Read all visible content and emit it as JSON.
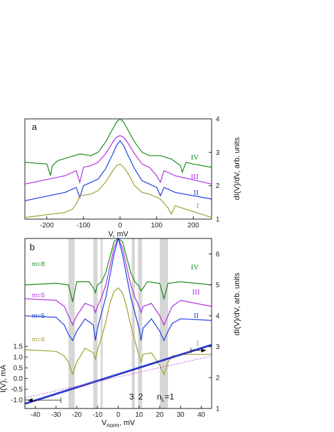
{
  "chart_data": [
    {
      "type": "line",
      "panel_label": "a",
      "xlabel": "V, mV",
      "ylabel": "dI(V)/dV, arb. units",
      "xlim": [
        -260,
        250
      ],
      "ylim": [
        1,
        4
      ],
      "xticks": [
        "-200",
        "-100",
        "0",
        "100",
        "200"
      ],
      "yticks": [
        "1",
        "2",
        "3",
        "4"
      ],
      "grid": false,
      "series": [
        {
          "name": "IV",
          "color": "#1a8a1a",
          "x": [
            -260,
            -200,
            -190,
            -185,
            -170,
            -140,
            -110,
            -80,
            -60,
            -40,
            -20,
            -10,
            0,
            10,
            20,
            40,
            60,
            80,
            110,
            140,
            165,
            170,
            180,
            200,
            250
          ],
          "y": [
            2.7,
            2.65,
            2.3,
            2.6,
            2.75,
            2.85,
            2.95,
            2.9,
            3.0,
            3.3,
            3.7,
            3.9,
            4.0,
            3.9,
            3.7,
            3.3,
            3.0,
            2.9,
            2.9,
            2.8,
            2.6,
            2.4,
            2.7,
            2.65,
            2.55
          ]
        },
        {
          "name": "III",
          "color": "#b030e0",
          "x": [
            -260,
            -150,
            -120,
            -110,
            -100,
            -80,
            -60,
            -40,
            -20,
            -10,
            0,
            10,
            20,
            40,
            60,
            80,
            100,
            110,
            120,
            150,
            250
          ],
          "y": [
            2.05,
            2.3,
            2.45,
            2.1,
            2.55,
            2.6,
            2.7,
            2.95,
            3.3,
            3.45,
            3.5,
            3.45,
            3.3,
            2.95,
            2.65,
            2.55,
            2.3,
            2.1,
            2.45,
            2.3,
            2.05
          ]
        },
        {
          "name": "II",
          "color": "#2040e0",
          "x": [
            -260,
            -150,
            -120,
            -110,
            -100,
            -80,
            -60,
            -40,
            -20,
            -10,
            0,
            10,
            20,
            40,
            60,
            80,
            100,
            110,
            120,
            150,
            250
          ],
          "y": [
            1.55,
            1.8,
            1.95,
            1.65,
            2.0,
            2.1,
            2.2,
            2.5,
            2.95,
            3.2,
            3.35,
            3.2,
            2.95,
            2.5,
            2.15,
            2.05,
            1.95,
            1.7,
            1.95,
            1.8,
            1.6
          ]
        },
        {
          "name": "I",
          "color": "#a0a030",
          "x": [
            -260,
            -150,
            -130,
            -120,
            -110,
            -80,
            -60,
            -40,
            -20,
            -10,
            0,
            10,
            20,
            40,
            60,
            80,
            110,
            130,
            140,
            150,
            250
          ],
          "y": [
            1.05,
            1.2,
            1.3,
            1.45,
            1.7,
            1.75,
            1.85,
            2.1,
            2.45,
            2.6,
            2.65,
            2.55,
            2.4,
            2.0,
            1.8,
            1.75,
            1.6,
            1.35,
            1.15,
            1.4,
            1.05
          ]
        }
      ],
      "curve_labels": [
        "IV",
        "III",
        "II",
        "I"
      ]
    },
    {
      "type": "line",
      "panel_label": "b",
      "xlabel_main": "V",
      "xlabel_sub": "norm",
      "xlabel_tail": ", mV",
      "ylabel_right": "dI(V)/dV, arb. units",
      "ylabel_left": "I(V), mA",
      "xlim": [
        -45,
        45
      ],
      "ylim_right": [
        1,
        6.5
      ],
      "ylim_left": [
        -1.4,
        1.7
      ],
      "xticks": [
        "-40",
        "-30",
        "-20",
        "-10",
        "0",
        "10",
        "20",
        "30",
        "40"
      ],
      "yticks_right": [
        "1",
        "2",
        "3",
        "4",
        "5",
        "6"
      ],
      "yticks_left": [
        "-1.0",
        "-0.5",
        "0.0",
        "0.5",
        "1.0",
        "1.5"
      ],
      "grid": false,
      "shaded_bands_mV": [
        [
          -24,
          -21
        ],
        [
          -12,
          -10
        ],
        [
          -8.5,
          -7.5
        ],
        [
          6.5,
          8
        ],
        [
          9.5,
          11.5
        ],
        [
          20,
          24
        ]
      ],
      "annotations": [
        "3",
        "2",
        "n",
        "L",
        "=1"
      ],
      "series": [
        {
          "name": "IV",
          "label": "m=8",
          "color": "#1a8a1a",
          "x": [
            -45,
            -30,
            -24,
            -22,
            -20,
            -14,
            -12,
            -11,
            -10,
            -8,
            -6,
            -4,
            -2,
            0,
            2,
            4,
            6,
            8,
            10,
            11,
            12,
            14,
            20,
            22,
            24,
            30,
            45
          ],
          "y": [
            5.0,
            5.05,
            5.0,
            4.45,
            5.1,
            5.1,
            4.9,
            4.75,
            5.0,
            5.1,
            5.4,
            5.9,
            6.4,
            6.6,
            6.4,
            5.9,
            5.4,
            5.1,
            4.95,
            4.8,
            4.9,
            5.1,
            5.05,
            4.55,
            5.05,
            5.1,
            5.0
          ]
        },
        {
          "name": "III",
          "label": "m=5",
          "color": "#b030e0",
          "x": [
            -45,
            -30,
            -26,
            -24,
            -22,
            -20,
            -16,
            -12,
            -11,
            -10,
            -8,
            -6,
            -4,
            -2,
            0,
            2,
            4,
            6,
            8,
            10,
            11,
            12,
            16,
            20,
            22,
            24,
            26,
            30,
            45
          ],
          "y": [
            4.55,
            4.5,
            4.3,
            4.0,
            3.7,
            4.0,
            4.4,
            4.3,
            4.1,
            4.3,
            4.6,
            5.0,
            5.6,
            6.2,
            6.6,
            6.2,
            5.6,
            5.0,
            4.6,
            4.3,
            4.1,
            4.3,
            4.4,
            4.0,
            3.7,
            4.0,
            4.3,
            4.5,
            4.3
          ]
        },
        {
          "name": "II",
          "label": "m=5",
          "color": "#2040e0",
          "x": [
            -45,
            -30,
            -26,
            -24,
            -22,
            -20,
            -16,
            -12,
            -11,
            -10,
            -8,
            -6,
            -4,
            -2,
            0,
            2,
            4,
            6,
            8,
            10,
            11,
            12,
            16,
            20,
            22,
            24,
            26,
            30,
            45
          ],
          "y": [
            4.0,
            3.95,
            3.7,
            3.4,
            3.2,
            3.5,
            3.9,
            3.7,
            3.2,
            3.6,
            4.1,
            4.6,
            5.3,
            6.0,
            6.5,
            6.0,
            5.3,
            4.6,
            4.1,
            3.6,
            3.2,
            3.6,
            3.9,
            3.5,
            3.2,
            3.5,
            3.75,
            3.9,
            3.85
          ]
        },
        {
          "name": "I",
          "label": "m=6",
          "color": "#a0a030",
          "x": [
            -45,
            -30,
            -26,
            -24,
            -22,
            -20,
            -16,
            -12,
            -11,
            -10,
            -8,
            -6,
            -4,
            -2,
            0,
            2,
            4,
            6,
            8,
            10,
            11,
            12,
            16,
            20,
            22,
            24,
            26,
            30,
            45
          ],
          "y": [
            2.9,
            2.85,
            2.7,
            2.5,
            2.1,
            2.5,
            2.95,
            2.8,
            2.6,
            2.9,
            3.3,
            3.8,
            4.4,
            4.8,
            4.9,
            4.75,
            4.3,
            3.7,
            3.2,
            2.7,
            2.5,
            2.75,
            2.8,
            2.4,
            2.1,
            2.5,
            2.7,
            2.75,
            2.75
          ]
        }
      ],
      "iv_curves": [
        {
          "color": "#1010a0",
          "x": [
            -45,
            45
          ],
          "y": [
            -1.2,
            1.55
          ]
        },
        {
          "color": "#2040e0",
          "x": [
            -45,
            45
          ],
          "y": [
            -1.15,
            1.6
          ]
        },
        {
          "color": "#b030e0",
          "dashed": true,
          "x": [
            -45,
            45
          ],
          "y": [
            -0.9,
            1.05
          ]
        }
      ]
    }
  ]
}
